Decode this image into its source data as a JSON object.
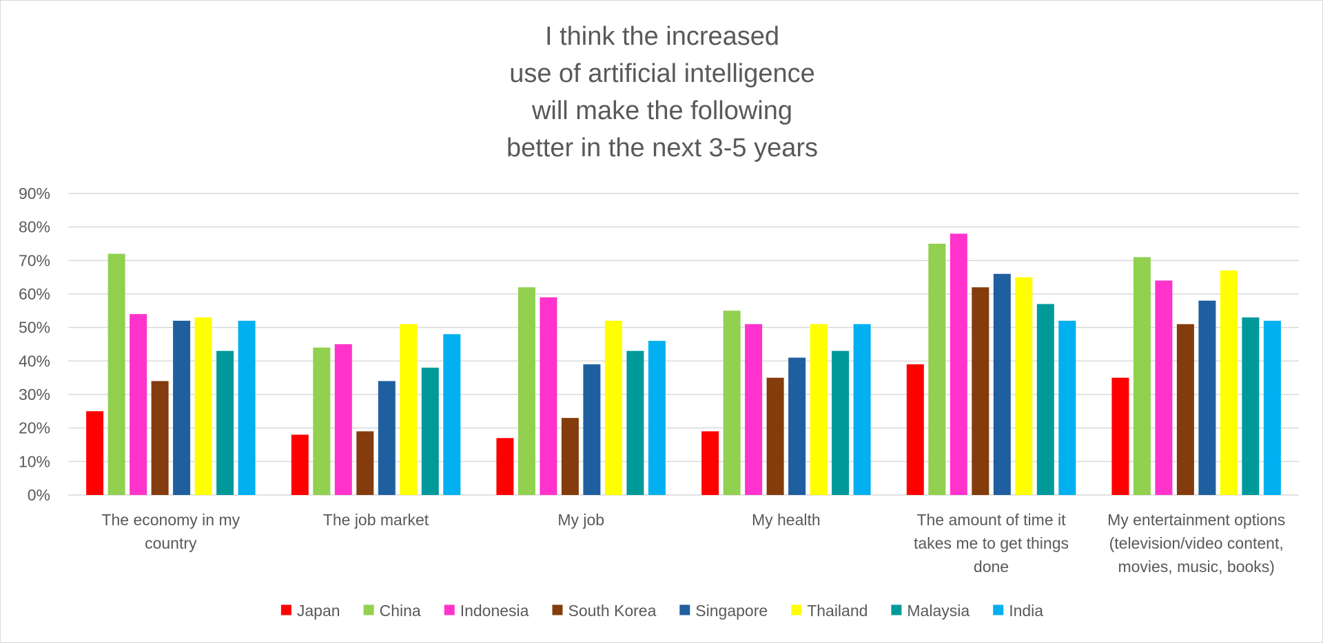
{
  "chart_data": {
    "type": "bar",
    "title": "I think the increased use of artificial intelligence will make the following better in the next 3-5 years",
    "title_lines": [
      "I think the increased",
      "use of artificial intelligence",
      "will make the following",
      "better in the next 3-5 years"
    ],
    "xlabel": "",
    "ylabel": "",
    "ylim": [
      0,
      90
    ],
    "yticks": [
      "0%",
      "10%",
      "20%",
      "30%",
      "40%",
      "50%",
      "60%",
      "70%",
      "80%",
      "90%"
    ],
    "grid": true,
    "legend_position": "bottom",
    "categories": [
      [
        "The economy in my",
        "country"
      ],
      [
        "The job market"
      ],
      [
        "My job"
      ],
      [
        "My health"
      ],
      [
        "The amount of time it",
        "takes me to get things",
        "done"
      ],
      [
        "My entertainment options",
        "(television/video content,",
        "movies, music, books)"
      ]
    ],
    "series": [
      {
        "name": "Japan",
        "color": "#ff0000",
        "values": [
          25,
          18,
          17,
          19,
          39,
          35
        ]
      },
      {
        "name": "China",
        "color": "#92d050",
        "values": [
          72,
          44,
          62,
          55,
          75,
          71
        ]
      },
      {
        "name": "Indonesia",
        "color": "#ff33cc",
        "values": [
          54,
          45,
          59,
          51,
          78,
          64
        ]
      },
      {
        "name": "South Korea",
        "color": "#843c0c",
        "values": [
          34,
          19,
          23,
          35,
          62,
          51
        ]
      },
      {
        "name": "Singapore",
        "color": "#1f5f9f",
        "values": [
          52,
          34,
          39,
          41,
          66,
          58
        ]
      },
      {
        "name": "Thailand",
        "color": "#ffff00",
        "values": [
          53,
          51,
          52,
          51,
          65,
          67
        ]
      },
      {
        "name": "Malaysia",
        "color": "#009999",
        "values": [
          43,
          38,
          43,
          43,
          57,
          53
        ]
      },
      {
        "name": "India",
        "color": "#00b0f0",
        "values": [
          52,
          48,
          46,
          51,
          52,
          52
        ]
      }
    ],
    "colors": {
      "gridline": "#d9d9d9",
      "text": "#595959"
    }
  }
}
